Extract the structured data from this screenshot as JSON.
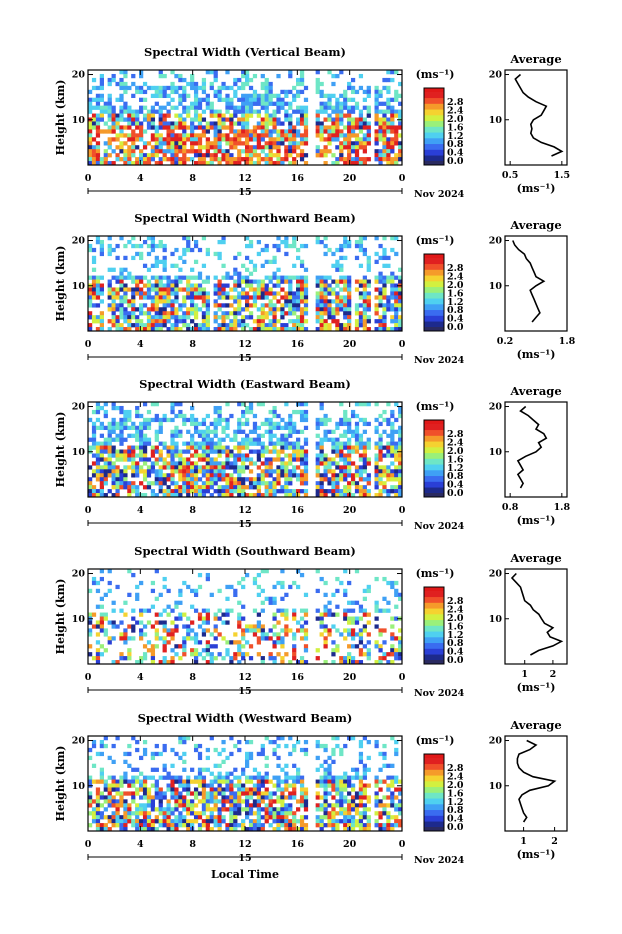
{
  "colors": {
    "scale": [
      "#1d2a8c",
      "#2a3fd6",
      "#3a6cf0",
      "#3fa0f5",
      "#4fd0f0",
      "#6ee6c6",
      "#9af07a",
      "#d2f040",
      "#f5d230",
      "#f59a2a",
      "#f0502a",
      "#e02020"
    ],
    "palette_top": "#e01818",
    "palette_bottom": "#2a2a60"
  },
  "figure": {
    "common_x_label": "Local Time",
    "date_label": "Nov 2024",
    "day_label": "15"
  },
  "chart_data": [
    {
      "type": "heatmap",
      "title": "Spectral Width (Vertical Beam)",
      "ylabel": "Height (km)",
      "xticks": [
        "0",
        "4",
        "8",
        "12",
        "16",
        "20",
        "0"
      ],
      "yticks": [
        "10",
        "20"
      ],
      "colorbar_unit": "(ms⁻¹)",
      "colorbar_ticks": [
        "0.0",
        "0.4",
        "0.8",
        "1.2",
        "1.6",
        "2.0",
        "2.4",
        "2.8"
      ],
      "average": {
        "title": "Average",
        "xlabel": "(ms⁻¹)",
        "xticks": [
          "0.5",
          "1.5"
        ],
        "xlim": [
          0.4,
          1.6
        ],
        "heights": [
          2,
          3,
          4,
          5,
          6,
          7,
          8,
          9,
          10,
          11,
          12,
          13,
          14,
          15,
          16,
          17,
          18,
          19,
          20
        ],
        "values": [
          1.3,
          1.5,
          1.35,
          1.1,
          0.95,
          0.9,
          0.92,
          0.9,
          0.95,
          1.1,
          1.15,
          1.2,
          1.0,
          0.85,
          0.75,
          0.7,
          0.65,
          0.6,
          0.7
        ]
      }
    },
    {
      "type": "heatmap",
      "title": "Spectral Width (Northward Beam)",
      "ylabel": "Height (km)",
      "xticks": [
        "0",
        "4",
        "8",
        "12",
        "16",
        "20",
        "0"
      ],
      "yticks": [
        "10",
        "20"
      ],
      "colorbar_unit": "(ms⁻¹)",
      "colorbar_ticks": [
        "0.0",
        "0.4",
        "0.8",
        "1.2",
        "1.6",
        "2.0",
        "2.4",
        "2.8"
      ],
      "average": {
        "title": "Average",
        "xlabel": "(ms⁻¹)",
        "xticks": [
          "0.2",
          "1.8"
        ],
        "xlim": [
          0.2,
          1.8
        ],
        "heights": [
          2,
          3,
          4,
          5,
          6,
          7,
          8,
          9,
          10,
          11,
          12,
          13,
          14,
          15,
          16,
          17,
          18,
          19,
          20
        ],
        "values": [
          0.9,
          1.0,
          1.1,
          1.05,
          1.0,
          0.95,
          0.9,
          0.85,
          1.0,
          1.2,
          1.0,
          0.95,
          0.9,
          0.85,
          0.75,
          0.7,
          0.55,
          0.45,
          0.4
        ]
      }
    },
    {
      "type": "heatmap",
      "title": "Spectral Width (Eastward Beam)",
      "ylabel": "Height (km)",
      "xticks": [
        "0",
        "4",
        "8",
        "12",
        "16",
        "20",
        "0"
      ],
      "yticks": [
        "10",
        "20"
      ],
      "colorbar_unit": "(ms⁻¹)",
      "colorbar_ticks": [
        "0.0",
        "0.4",
        "0.8",
        "1.2",
        "1.6",
        "2.0",
        "2.4",
        "2.8"
      ],
      "average": {
        "title": "Average",
        "xlabel": "(ms⁻¹)",
        "xticks": [
          "0.8",
          "1.8"
        ],
        "xlim": [
          0.7,
          1.9
        ],
        "heights": [
          2,
          3,
          4,
          5,
          6,
          7,
          8,
          9,
          10,
          11,
          12,
          13,
          14,
          15,
          16,
          17,
          18,
          19,
          20
        ],
        "values": [
          1.0,
          1.05,
          1.0,
          0.95,
          1.05,
          1.0,
          0.95,
          1.1,
          1.3,
          1.4,
          1.35,
          1.5,
          1.45,
          1.3,
          1.35,
          1.25,
          1.15,
          1.0,
          1.1
        ]
      }
    },
    {
      "type": "heatmap",
      "title": "Spectral Width (Southward Beam)",
      "ylabel": "Height (km)",
      "xticks": [
        "0",
        "4",
        "8",
        "12",
        "16",
        "20",
        "0"
      ],
      "yticks": [
        "10",
        "20"
      ],
      "colorbar_unit": "(ms⁻¹)",
      "colorbar_ticks": [
        "0.0",
        "0.4",
        "0.8",
        "1.2",
        "1.6",
        "2.0",
        "2.4",
        "2.8"
      ],
      "average": {
        "title": "Average",
        "xlabel": "(ms⁻¹)",
        "xticks": [
          "1",
          "2"
        ],
        "xlim": [
          0.3,
          2.5
        ],
        "heights": [
          2,
          3,
          4,
          5,
          6,
          7,
          8,
          9,
          10,
          11,
          12,
          13,
          14,
          15,
          16,
          17,
          18,
          19,
          20
        ],
        "values": [
          1.2,
          1.5,
          2.0,
          2.3,
          1.9,
          1.8,
          2.0,
          1.7,
          1.6,
          1.5,
          1.3,
          1.2,
          1.0,
          0.95,
          0.9,
          0.85,
          0.7,
          0.55,
          0.7
        ]
      }
    },
    {
      "type": "heatmap",
      "title": "Spectral Width (Westward Beam)",
      "ylabel": "Height (km)",
      "xticks": [
        "0",
        "4",
        "8",
        "12",
        "16",
        "20",
        "0"
      ],
      "yticks": [
        "10",
        "20"
      ],
      "colorbar_unit": "(ms⁻¹)",
      "colorbar_ticks": [
        "0.0",
        "0.4",
        "0.8",
        "1.2",
        "1.6",
        "2.0",
        "2.4",
        "2.8"
      ],
      "average": {
        "title": "Average",
        "xlabel": "(ms⁻¹)",
        "xticks": [
          "1",
          "2"
        ],
        "xlim": [
          0.4,
          2.4
        ],
        "heights": [
          2,
          3,
          4,
          5,
          6,
          7,
          8,
          9,
          10,
          11,
          12,
          13,
          14,
          15,
          16,
          17,
          18,
          19,
          20
        ],
        "values": [
          1.0,
          1.1,
          1.0,
          0.95,
          0.9,
          0.85,
          0.95,
          1.2,
          1.8,
          2.0,
          1.3,
          1.0,
          0.85,
          0.8,
          0.8,
          0.85,
          1.2,
          1.4,
          1.1
        ]
      }
    }
  ]
}
